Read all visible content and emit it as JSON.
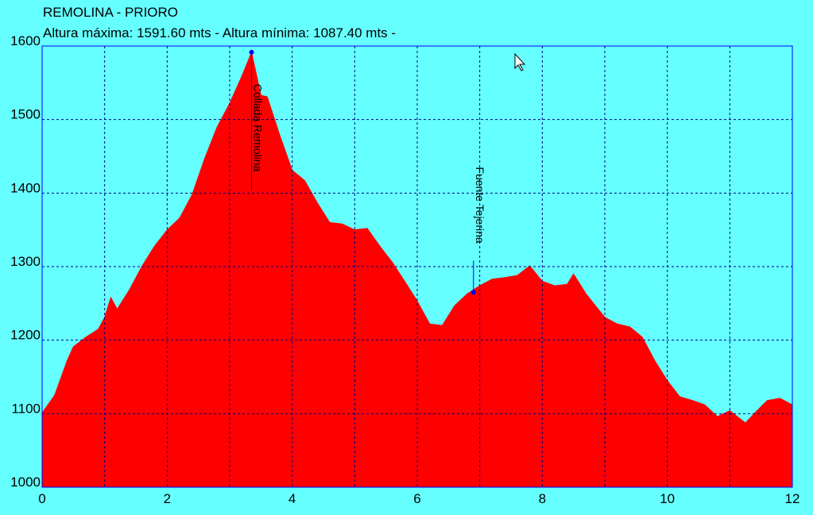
{
  "chart_data": {
    "type": "area",
    "title": "REMOLINA - PRIORO",
    "subtitle": "Altura máxima: 1591.60 mts - Altura mínima: 1087.40 mts -",
    "x": [
      0,
      0.2,
      0.4,
      0.5,
      0.7,
      0.9,
      1.0,
      1.1,
      1.2,
      1.4,
      1.6,
      1.8,
      2.0,
      2.2,
      2.4,
      2.6,
      2.8,
      3.0,
      3.2,
      3.35,
      3.5,
      3.6,
      3.8,
      4.0,
      4.2,
      4.4,
      4.6,
      4.8,
      5.0,
      5.2,
      5.4,
      5.6,
      5.8,
      6.0,
      6.2,
      6.4,
      6.6,
      6.8,
      7.0,
      7.2,
      7.4,
      7.6,
      7.8,
      8.0,
      8.2,
      8.4,
      8.5,
      8.7,
      9.0,
      9.2,
      9.4,
      9.6,
      9.8,
      10.0,
      10.2,
      10.4,
      10.6,
      10.8,
      11.0,
      11.25,
      11.4,
      11.6,
      11.8,
      12.0
    ],
    "series": [
      {
        "name": "Altura",
        "color": "#ff0000",
        "values": [
          1101,
          1125,
          1172,
          1191,
          1204,
          1215,
          1231,
          1258,
          1242,
          1269,
          1301,
          1328,
          1350,
          1366,
          1398,
          1447,
          1490,
          1522,
          1560,
          1591.6,
          1533,
          1531,
          1479,
          1431,
          1417,
          1387,
          1360,
          1358,
          1350,
          1352,
          1328,
          1306,
          1280,
          1253,
          1222,
          1220,
          1247,
          1263,
          1274,
          1283,
          1285,
          1288,
          1301,
          1280,
          1274,
          1276,
          1290,
          1263,
          1231,
          1222,
          1218,
          1204,
          1172,
          1145,
          1123,
          1118,
          1112,
          1096,
          1104,
          1087.4,
          1101,
          1118,
          1121,
          1112
        ]
      }
    ],
    "annotations": [
      {
        "text": "Collada Remolina",
        "x": 3.35,
        "y": 1591.6
      },
      {
        "text": "Fuente Tejerina",
        "x": 6.9,
        "y": 1265
      }
    ],
    "xlim": [
      0,
      12
    ],
    "xticks": [
      0,
      2,
      4,
      6,
      8,
      10,
      12
    ],
    "xminor": [
      1,
      3,
      5,
      7,
      9,
      11
    ],
    "ylim": [
      1000,
      1600
    ],
    "yticks": [
      1000,
      1100,
      1200,
      1300,
      1400,
      1500,
      1600
    ],
    "grid": true
  }
}
